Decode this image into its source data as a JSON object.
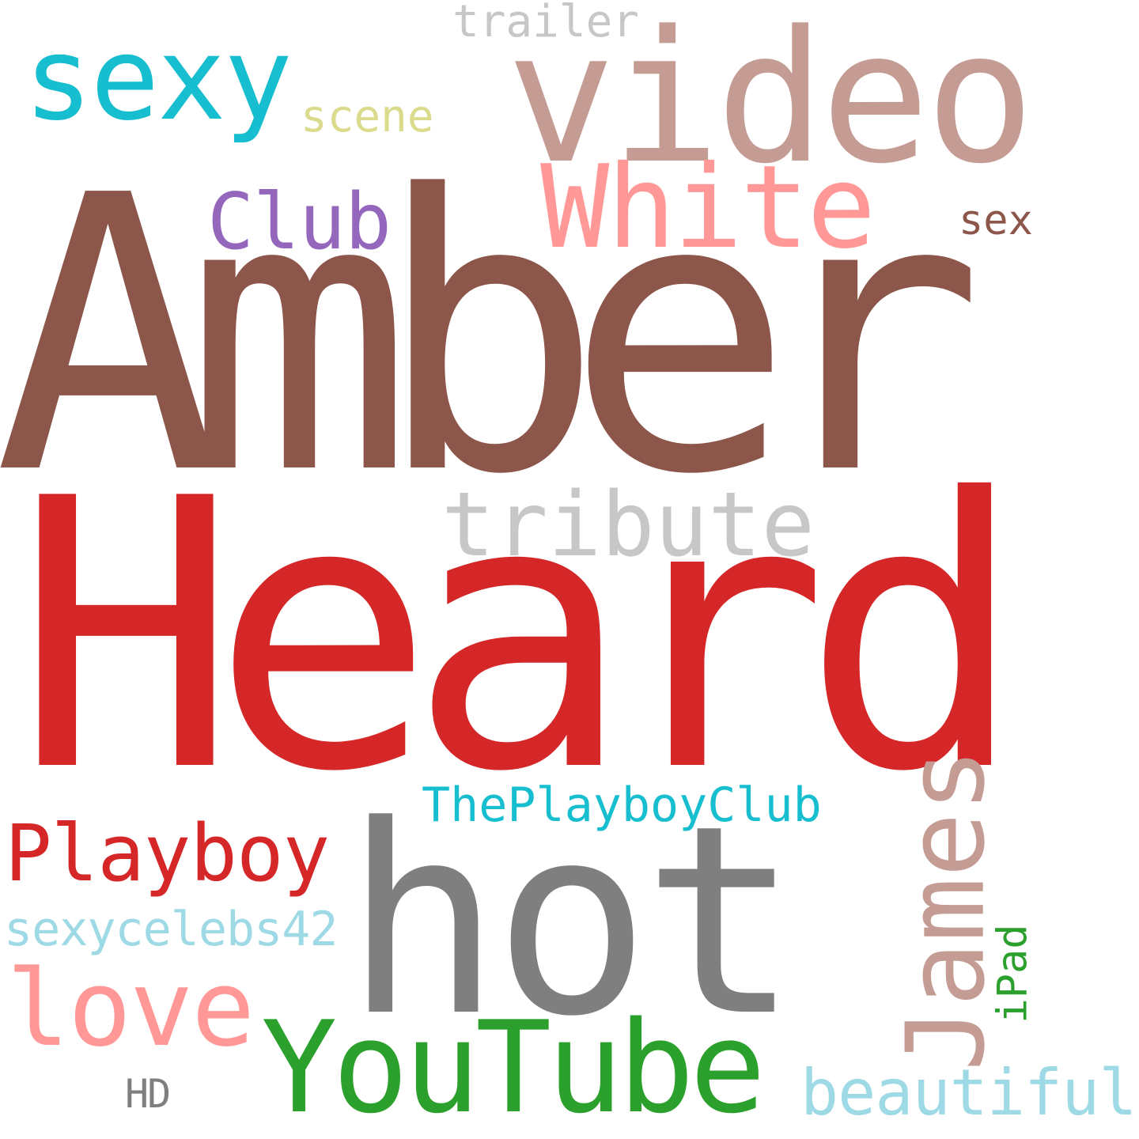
{
  "wordcloud": {
    "background": "#ffffff",
    "words": [
      {
        "text": "Amber",
        "color": "#8c564b",
        "orientation": "horizontal"
      },
      {
        "text": "Heard",
        "color": "#d62728",
        "orientation": "horizontal"
      },
      {
        "text": "hot",
        "color": "#7f7f7f",
        "orientation": "horizontal"
      },
      {
        "text": "video",
        "color": "#c49c94",
        "orientation": "horizontal"
      },
      {
        "text": "sexy",
        "color": "#17becf",
        "orientation": "horizontal"
      },
      {
        "text": "White",
        "color": "#ff9896",
        "orientation": "horizontal"
      },
      {
        "text": "tribute",
        "color": "#c7c7c7",
        "orientation": "horizontal"
      },
      {
        "text": "YouTube",
        "color": "#2ca02c",
        "orientation": "horizontal"
      },
      {
        "text": "love",
        "color": "#ff9896",
        "orientation": "horizontal"
      },
      {
        "text": "Playboy",
        "color": "#d62728",
        "orientation": "horizontal"
      },
      {
        "text": "Club",
        "color": "#9467bd",
        "orientation": "horizontal"
      },
      {
        "text": "James",
        "color": "#c49c94",
        "orientation": "vertical"
      },
      {
        "text": "ThePlayboyClub",
        "color": "#17becf",
        "orientation": "horizontal"
      },
      {
        "text": "sexycelebs42",
        "color": "#9edae5",
        "orientation": "horizontal"
      },
      {
        "text": "beautiful",
        "color": "#9edae5",
        "orientation": "horizontal"
      },
      {
        "text": "trailer",
        "color": "#c7c7c7",
        "orientation": "horizontal"
      },
      {
        "text": "scene",
        "color": "#dbdb8d",
        "orientation": "horizontal"
      },
      {
        "text": "sex",
        "color": "#8c564b",
        "orientation": "horizontal"
      },
      {
        "text": "iPad",
        "color": "#2ca02c",
        "orientation": "vertical"
      },
      {
        "text": "HD",
        "color": "#7f7f7f",
        "orientation": "horizontal"
      }
    ]
  }
}
